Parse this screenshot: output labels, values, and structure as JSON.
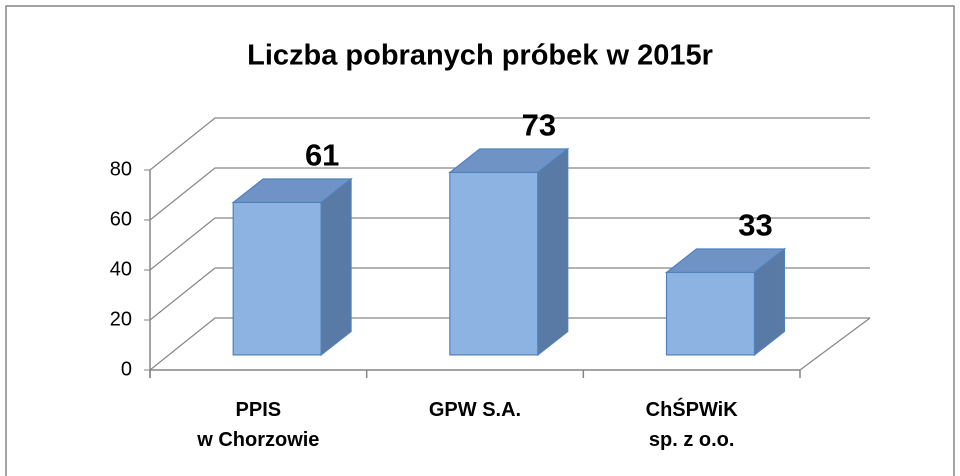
{
  "chart_data": {
    "type": "bar3d",
    "title": "Liczba pobranych próbek w 2015r",
    "categories": [
      "PPIS\nw Chorzowie",
      "GPW S.A.",
      "ChŚPWiK\nsp. z o.o."
    ],
    "values": [
      61,
      73,
      33
    ],
    "color": "#8db3e2",
    "ylim": [
      0,
      80
    ],
    "yticks": [
      0,
      20,
      40,
      60,
      80
    ],
    "grid": true
  }
}
